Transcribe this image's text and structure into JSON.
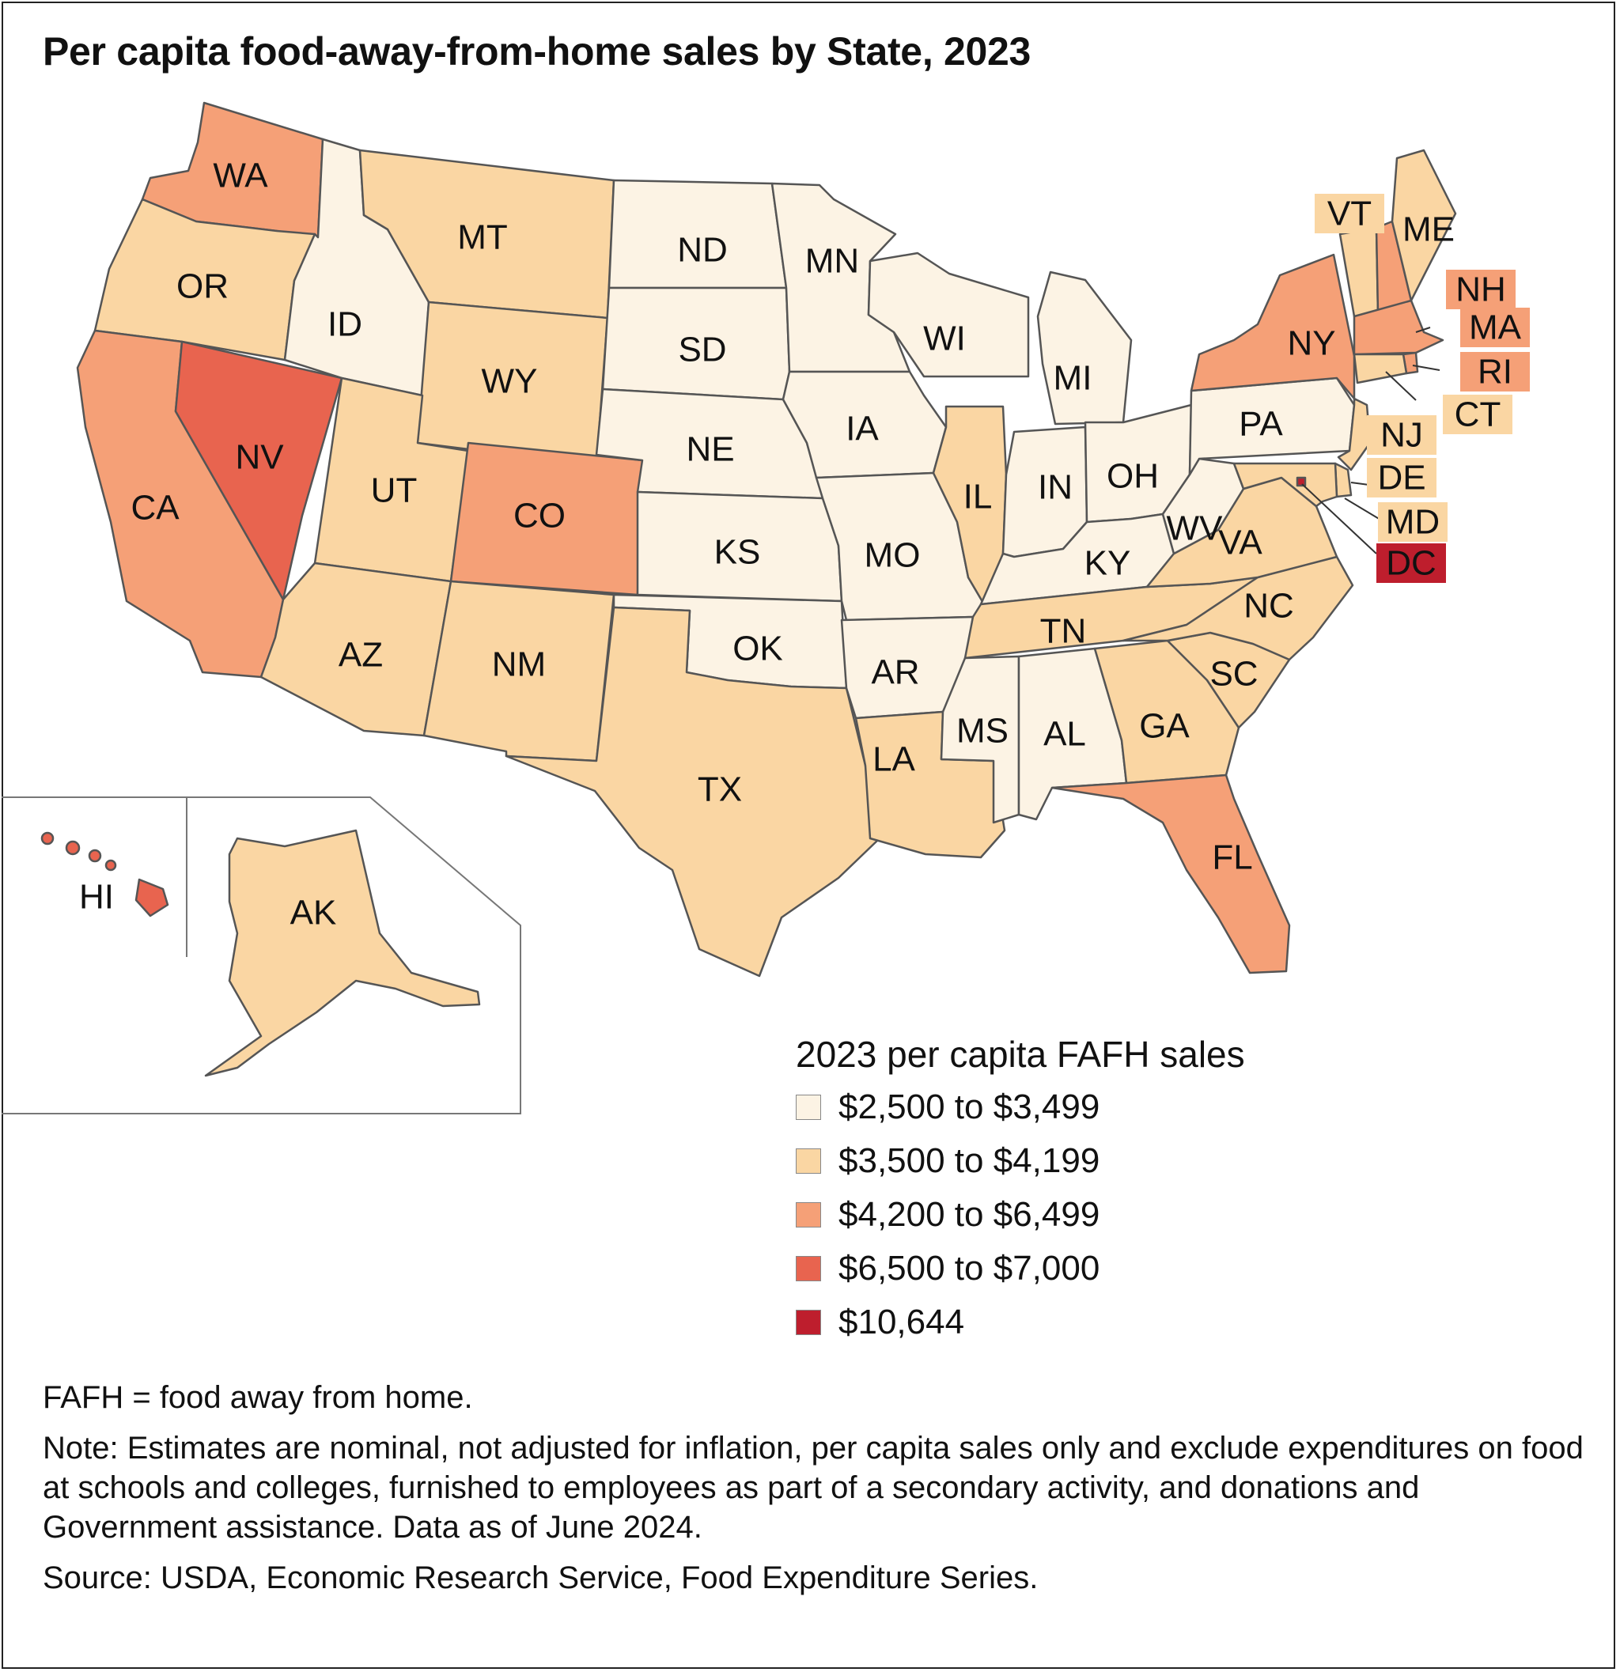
{
  "title": "Per capita food-away-from-home sales by State, 2023",
  "legend": {
    "title": "2023 per capita FAFH sales",
    "items": [
      {
        "label": "$2,500 to $3,499",
        "color": "#fcf3e4"
      },
      {
        "label": "$3,500 to $4,199",
        "color": "#fad6a3"
      },
      {
        "label": "$4,200 to $6,499",
        "color": "#f5a077"
      },
      {
        "label": "$6,500 to $7,000",
        "color": "#e8644f"
      },
      {
        "label": "$10,644",
        "color": "#be1e2d"
      }
    ]
  },
  "states": [
    {
      "abbr": "WA",
      "bin": 2
    },
    {
      "abbr": "OR",
      "bin": 1
    },
    {
      "abbr": "CA",
      "bin": 2
    },
    {
      "abbr": "ID",
      "bin": 0
    },
    {
      "abbr": "NV",
      "bin": 3
    },
    {
      "abbr": "MT",
      "bin": 1
    },
    {
      "abbr": "WY",
      "bin": 1
    },
    {
      "abbr": "UT",
      "bin": 1
    },
    {
      "abbr": "CO",
      "bin": 2
    },
    {
      "abbr": "AZ",
      "bin": 1
    },
    {
      "abbr": "NM",
      "bin": 1
    },
    {
      "abbr": "ND",
      "bin": 0
    },
    {
      "abbr": "SD",
      "bin": 0
    },
    {
      "abbr": "NE",
      "bin": 0
    },
    {
      "abbr": "KS",
      "bin": 0
    },
    {
      "abbr": "OK",
      "bin": 0
    },
    {
      "abbr": "TX",
      "bin": 1
    },
    {
      "abbr": "MN",
      "bin": 0
    },
    {
      "abbr": "IA",
      "bin": 0
    },
    {
      "abbr": "MO",
      "bin": 0
    },
    {
      "abbr": "AR",
      "bin": 0
    },
    {
      "abbr": "LA",
      "bin": 1
    },
    {
      "abbr": "WI",
      "bin": 0
    },
    {
      "abbr": "IL",
      "bin": 1
    },
    {
      "abbr": "MI",
      "bin": 0
    },
    {
      "abbr": "IN",
      "bin": 0
    },
    {
      "abbr": "OH",
      "bin": 0
    },
    {
      "abbr": "KY",
      "bin": 0
    },
    {
      "abbr": "TN",
      "bin": 1
    },
    {
      "abbr": "MS",
      "bin": 0
    },
    {
      "abbr": "AL",
      "bin": 0
    },
    {
      "abbr": "GA",
      "bin": 1
    },
    {
      "abbr": "FL",
      "bin": 2
    },
    {
      "abbr": "SC",
      "bin": 1
    },
    {
      "abbr": "NC",
      "bin": 1
    },
    {
      "abbr": "VA",
      "bin": 1
    },
    {
      "abbr": "WV",
      "bin": 0
    },
    {
      "abbr": "PA",
      "bin": 0
    },
    {
      "abbr": "NY",
      "bin": 2
    },
    {
      "abbr": "VT",
      "bin": 1
    },
    {
      "abbr": "NH",
      "bin": 2
    },
    {
      "abbr": "ME",
      "bin": 1
    },
    {
      "abbr": "MA",
      "bin": 2
    },
    {
      "abbr": "RI",
      "bin": 2
    },
    {
      "abbr": "CT",
      "bin": 1
    },
    {
      "abbr": "NJ",
      "bin": 1
    },
    {
      "abbr": "DE",
      "bin": 1
    },
    {
      "abbr": "MD",
      "bin": 1
    },
    {
      "abbr": "DC",
      "bin": 4
    },
    {
      "abbr": "AK",
      "bin": 1
    },
    {
      "abbr": "HI",
      "bin": 3
    }
  ],
  "notes": {
    "abbrev": "FAFH = food away from home.",
    "note": "Note: Estimates are nominal, not adjusted for inflation, per capita sales only and exclude expenditures on food at schools and colleges, furnished to employees as part of a secondary activity, and donations and Government assistance. Data as of June 2024.",
    "source": "Source: USDA, Economic Research Service, Food Expenditure Series."
  }
}
